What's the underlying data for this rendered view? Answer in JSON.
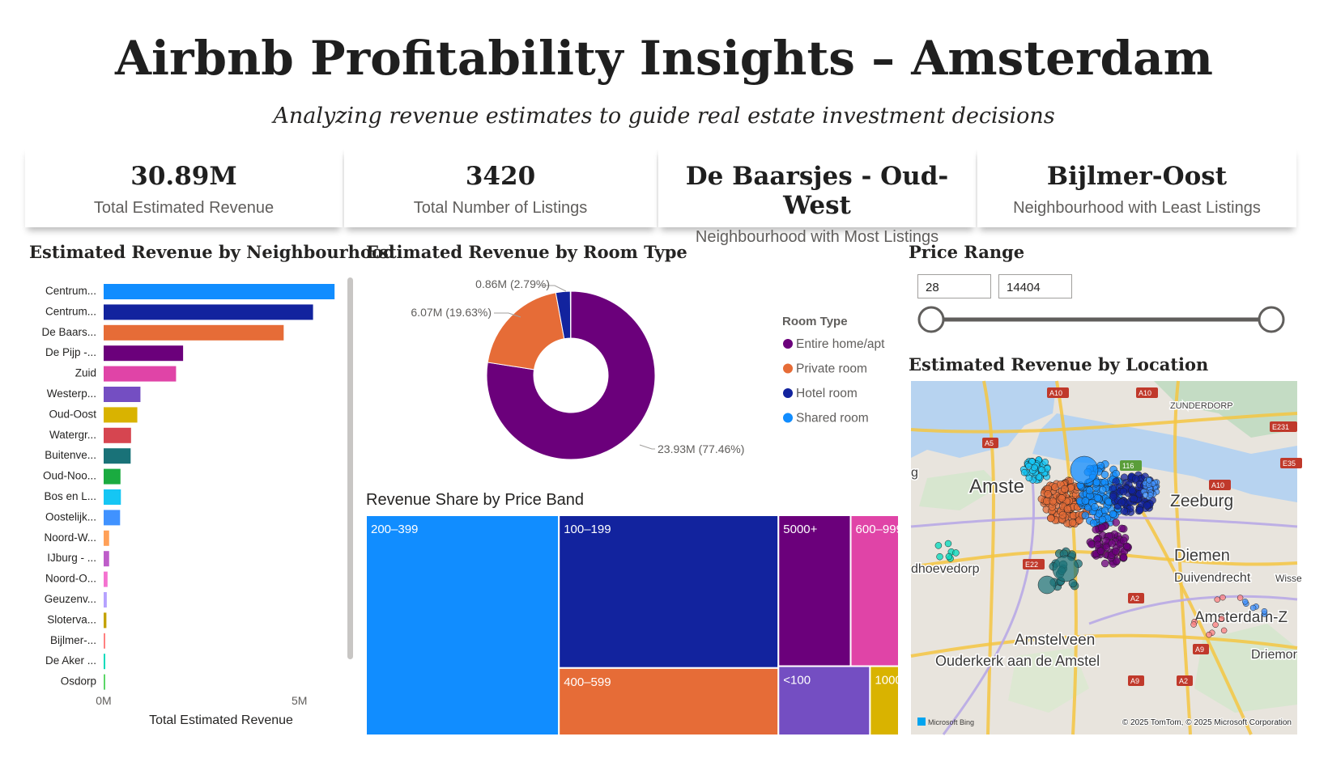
{
  "header": {
    "title": "Airbnb Profitability Insights – Amsterdam",
    "subtitle": "Analyzing revenue estimates to guide real estate investment decisions"
  },
  "kpis": [
    {
      "value": "30.89M",
      "label": "Total Estimated Revenue"
    },
    {
      "value": "3420",
      "label": "Total Number of Listings"
    },
    {
      "value": "De Baarsjes - Oud-West",
      "label": "Neighbourhood with Most Listings"
    },
    {
      "value": "Bijlmer-Oost",
      "label": "Neighbourhood with Least Listings"
    }
  ],
  "price_range": {
    "title": "Price Range",
    "min": "28",
    "max": "14404",
    "slider_start": 0,
    "slider_end": 1
  },
  "map": {
    "title": "Estimated Revenue by Location",
    "labels": [
      "Amste",
      "Zeeburg",
      "Diemen",
      "Duivendrecht",
      "Amsterdam-Z",
      "Amstelveen",
      "Ouderkerk aan de Amstel",
      "dhoevedorp",
      "Driemor",
      "ZUNDERDORP",
      "Wisse",
      "g"
    ],
    "road_labels": [
      "A10",
      "A5",
      "E231",
      "E35",
      "A10",
      "116",
      "E22",
      "A2",
      "A9",
      "A9",
      "A2",
      "A10"
    ],
    "attribution": "© 2025 TomTom, © 2025 Microsoft Corporation",
    "brand": "Microsoft Bing"
  },
  "chart_data": [
    {
      "type": "bar",
      "orientation": "horizontal",
      "title": "Estimated Revenue by Neighbourhood",
      "xlabel": "Total Estimated Revenue",
      "xlim": [
        0,
        6000000
      ],
      "xticks": [
        0,
        5000000
      ],
      "xtick_labels": [
        "0M",
        "5M"
      ],
      "categories": [
        "Centrum...",
        "Centrum...",
        "De Baars...",
        "De Pijp -...",
        "Zuid",
        "Westerp...",
        "Oud-Oost",
        "Watergr...",
        "Buitenve...",
        "Oud-Noo...",
        "Bos en L...",
        "Oostelijk...",
        "Noord-W...",
        "IJburg - ...",
        "Noord-O...",
        "Geuzenv...",
        "Slotervа...",
        "Bijlmer-...",
        "De Aker ...",
        "Osdorp"
      ],
      "values": [
        5900000,
        5350000,
        4600000,
        2030000,
        1850000,
        940000,
        860000,
        700000,
        690000,
        430000,
        440000,
        420000,
        140000,
        140000,
        100000,
        80000,
        70000,
        30000,
        30000,
        20000
      ],
      "colors": [
        "#118DFF",
        "#12239E",
        "#E66C37",
        "#6B007B",
        "#E044A7",
        "#744EC2",
        "#D9B300",
        "#D64550",
        "#197278",
        "#1AAB40",
        "#15C6F4",
        "#4092FF",
        "#FFA058",
        "#BE5DC9",
        "#F472D0",
        "#B5A1FF",
        "#C4A200",
        "#FF8080",
        "#00DBBC",
        "#5BD667"
      ]
    },
    {
      "type": "pie",
      "style": "donut",
      "title": "Estimated Revenue by Room Type",
      "legend_title": "Room Type",
      "legend_position": "right",
      "categories": [
        "Entire home/apt",
        "Private room",
        "Hotel room",
        "Shared room"
      ],
      "values": [
        23.93,
        6.07,
        0.86,
        0.03
      ],
      "unit": "M",
      "colors": [
        "#6B007B",
        "#E66C37",
        "#12239E",
        "#118DFF"
      ],
      "data_labels": [
        "23.93M (77.46%)",
        "6.07M (19.63%)",
        "0.86M (2.79%)",
        ""
      ]
    },
    {
      "type": "treemap",
      "title": "Revenue Share by Price Band",
      "categories": [
        "200–399",
        "100–199",
        "400–599",
        "5000+",
        "600–999",
        "<100",
        "1000..."
      ],
      "values": [
        36.2,
        28.6,
        12.6,
        9.3,
        6.2,
        5.4,
        1.7
      ],
      "colors": [
        "#118DFF",
        "#12239E",
        "#E66C37",
        "#6B007B",
        "#E044A7",
        "#744EC2",
        "#D9B300"
      ]
    }
  ]
}
